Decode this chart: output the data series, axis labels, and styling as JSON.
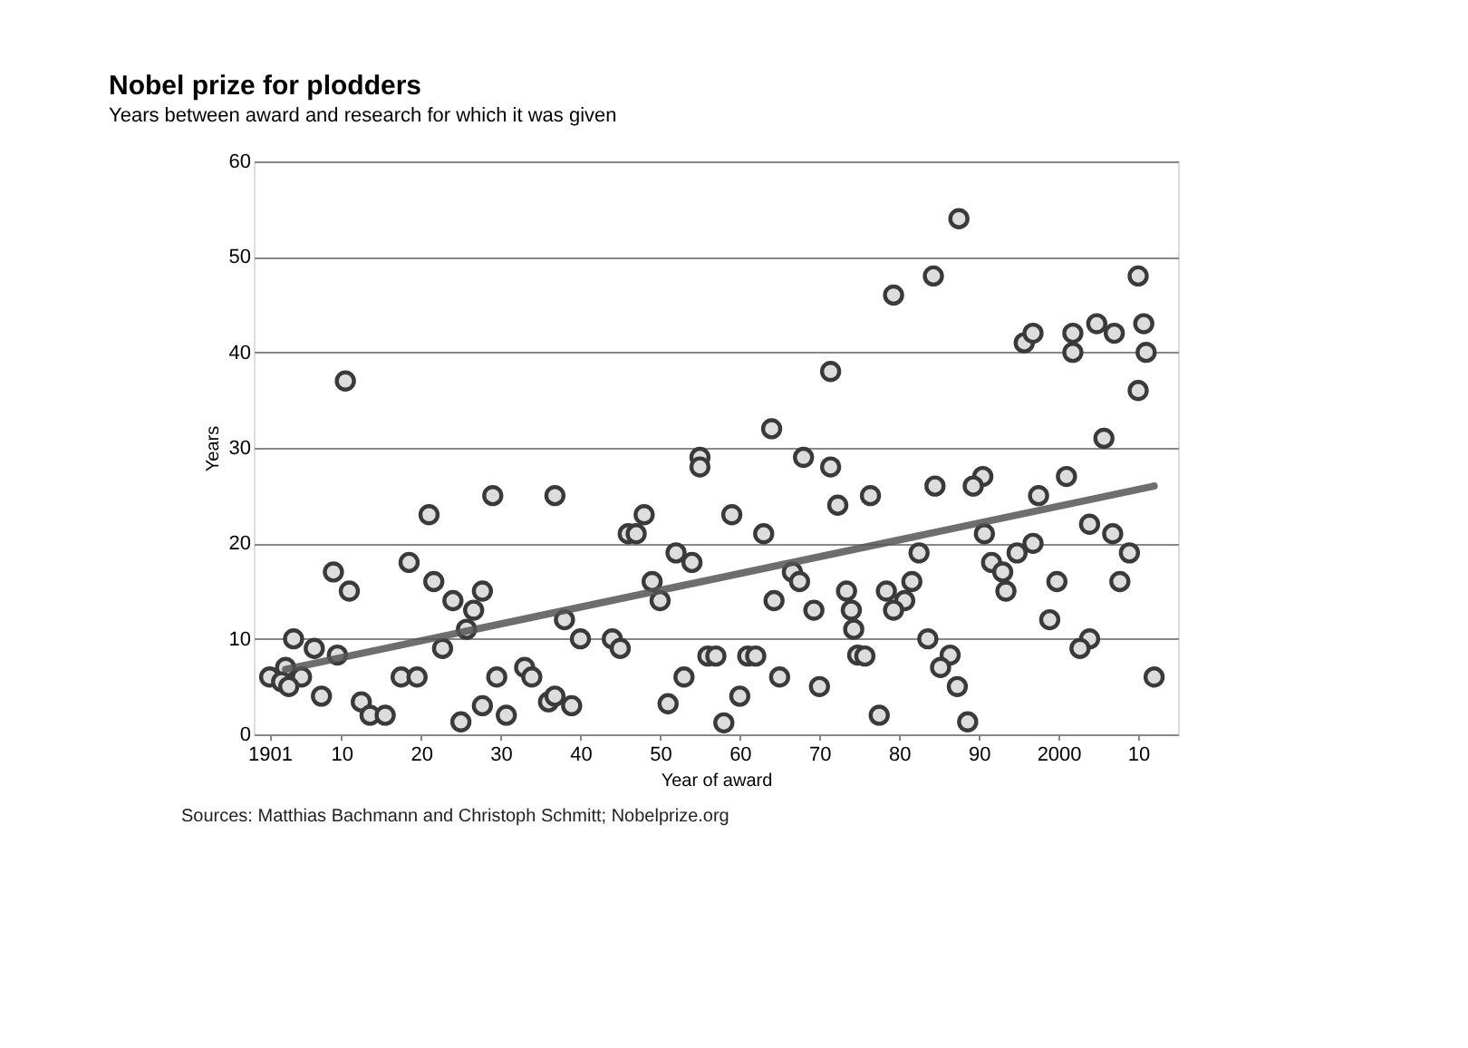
{
  "chart_data": {
    "type": "scatter",
    "title": "Nobel prize for plodders",
    "subtitle": "Years between award and research for which it was given",
    "xlabel": "Year of award",
    "ylabel": "Years",
    "annotations": [
      "Sources: Matthias Bachmann and Christoph Schmitt; Nobelprize.org"
    ],
    "xlim": [
      1899,
      2015
    ],
    "ylim": [
      0,
      60
    ],
    "xticks": [
      {
        "value": 1901,
        "label": "1901"
      },
      {
        "value": 1910,
        "label": "10"
      },
      {
        "value": 1920,
        "label": "20"
      },
      {
        "value": 1930,
        "label": "30"
      },
      {
        "value": 1940,
        "label": "40"
      },
      {
        "value": 1950,
        "label": "50"
      },
      {
        "value": 1960,
        "label": "60"
      },
      {
        "value": 1970,
        "label": "70"
      },
      {
        "value": 1980,
        "label": "80"
      },
      {
        "value": 1990,
        "label": "90"
      },
      {
        "value": 2000,
        "label": "2000"
      },
      {
        "value": 2010,
        "label": "10"
      }
    ],
    "yticks": [
      0,
      10,
      20,
      30,
      40,
      50,
      60
    ],
    "grid": "y",
    "series": [
      {
        "marker": "circle",
        "color": "#3a3a3a",
        "x": [
          1910.5,
          1909,
          1911,
          1904,
          1906.6,
          1909.5,
          1901,
          1903,
          1905,
          1902.5,
          1903.4,
          1907.5,
          1921,
          1929,
          1918.5,
          1921.6,
          1924,
          1927.7,
          1926.6,
          1925.7,
          1922.7,
          1917.5,
          1919.5,
          1912.5,
          1913.6,
          1915.5,
          1925,
          1929.5,
          1927.7,
          1930.7,
          1936.8,
          1971.4,
          1964,
          1955,
          1955,
          1968,
          1971.4,
          1972.3,
          1948,
          1946,
          1947,
          1959,
          1963,
          1952,
          1954,
          1949,
          1950,
          1938,
          1940,
          1944,
          1945,
          1966.6,
          1967.5,
          1964.3,
          1969.3,
          1973.4,
          1974,
          1974.3,
          1974.8,
          1933,
          1933.9,
          1936,
          1936.8,
          1938.9,
          1953,
          1951,
          1956,
          1957,
          1961,
          1962,
          1960,
          1965,
          1970,
          1958,
          1987.5,
          1984.3,
          1979.3,
          2010,
          1995.7,
          1996.8,
          2001.8,
          2001.8,
          2004.8,
          2007,
          2010.7,
          2011,
          2010,
          2005.7,
          1976.4,
          1984.5,
          1990.5,
          1989.3,
          2001,
          1997.5,
          1990.7,
          1982.5,
          1996.8,
          1994.8,
          1991.6,
          1993,
          1993.4,
          2003.9,
          2006.8,
          2008.9,
          1981.6,
          1978.4,
          1980.7,
          1979.3,
          1999.8,
          2007.7,
          1998.9,
          1983.6,
          2003.9,
          2002.7,
          1975.7,
          1986.4,
          1985.2,
          1987.3,
          2012,
          1977.5,
          1988.6
        ],
        "values": [
          37,
          17,
          15,
          10,
          9,
          8.3,
          6,
          7,
          6,
          5.5,
          5,
          4,
          23,
          25,
          18,
          16,
          14,
          15,
          13,
          11,
          9,
          6,
          6,
          3.4,
          2,
          2,
          1.3,
          6,
          3,
          2,
          25,
          38,
          32,
          29,
          28,
          29,
          28,
          24,
          23,
          21,
          21,
          23,
          21,
          19,
          18,
          16,
          14,
          12,
          10,
          10,
          9,
          17,
          16,
          14,
          13,
          15,
          13,
          11,
          8.3,
          7,
          6,
          3.4,
          4,
          3,
          6,
          3.2,
          8.2,
          8.2,
          8.2,
          8.2,
          4,
          6,
          5,
          1.2,
          54,
          48,
          46,
          48,
          41,
          42,
          42,
          40,
          43,
          42,
          43,
          40,
          36,
          31,
          25,
          26,
          27,
          26,
          27,
          25,
          21,
          19,
          20,
          19,
          18,
          17,
          15,
          22,
          21,
          19,
          16,
          15,
          14,
          13,
          16,
          16,
          12,
          10,
          10,
          9,
          8.2,
          8.3,
          7,
          5,
          6,
          2,
          1.3
        ]
      },
      {
        "type": "line",
        "color": "#555555",
        "x": [
          1903,
          2012
        ],
        "values": [
          6.8,
          26
        ]
      }
    ]
  }
}
